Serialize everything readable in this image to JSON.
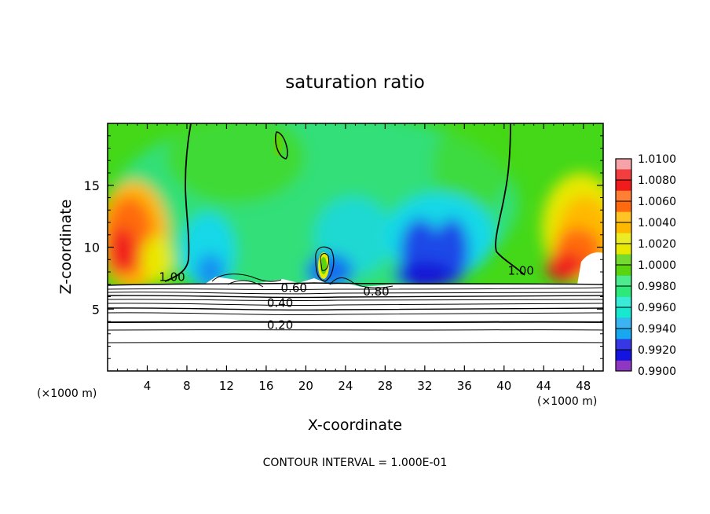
{
  "chart_data": {
    "type": "heatmap",
    "title": "saturation ratio",
    "xlabel": "X-coordinate",
    "ylabel": "Z-coordinate",
    "x_unit_left": "(×1000 m)",
    "x_unit_right": "(×1000 m)",
    "footer": "CONTOUR INTERVAL = 1.000E-01",
    "xlim": [
      0,
      50
    ],
    "ylim": [
      0,
      20
    ],
    "x_ticks": [
      "4",
      "8",
      "12",
      "16",
      "20",
      "24",
      "28",
      "32",
      "36",
      "40",
      "44",
      "48"
    ],
    "y_ticks": [
      "5",
      "10",
      "15"
    ],
    "x_tick_values": [
      4,
      8,
      12,
      16,
      20,
      24,
      28,
      32,
      36,
      40,
      44,
      48
    ],
    "y_tick_values": [
      5,
      10,
      15
    ],
    "contour_labels": [
      {
        "text": "1.00",
        "x": 6.5,
        "z": 7.6
      },
      {
        "text": "0.60",
        "x": 18.8,
        "z": 6.7
      },
      {
        "text": "0.40",
        "x": 17.4,
        "z": 5.5
      },
      {
        "text": "0.80",
        "x": 27.1,
        "z": 6.4
      },
      {
        "text": "0.20",
        "x": 17.4,
        "z": 3.7
      },
      {
        "text": "1.00",
        "x": 41.7,
        "z": 8.1
      }
    ],
    "colorbar": {
      "labels": [
        "1.0100",
        "1.0080",
        "1.0060",
        "1.0040",
        "1.0020",
        "1.0000",
        "0.9980",
        "0.9960",
        "0.9940",
        "0.9920",
        "0.9900"
      ],
      "values": [
        1.01,
        1.008,
        1.006,
        1.004,
        1.002,
        1.0,
        0.998,
        0.996,
        0.994,
        0.992,
        0.99
      ],
      "colors": [
        "#f5a3a8",
        "#f01c1c",
        "#ff6a10",
        "#ffb800",
        "#e8e800",
        "#5ad40e",
        "#2ee87a",
        "#18e8d0",
        "#18a8f0",
        "#1414e0",
        "#7a14b8"
      ]
    }
  }
}
